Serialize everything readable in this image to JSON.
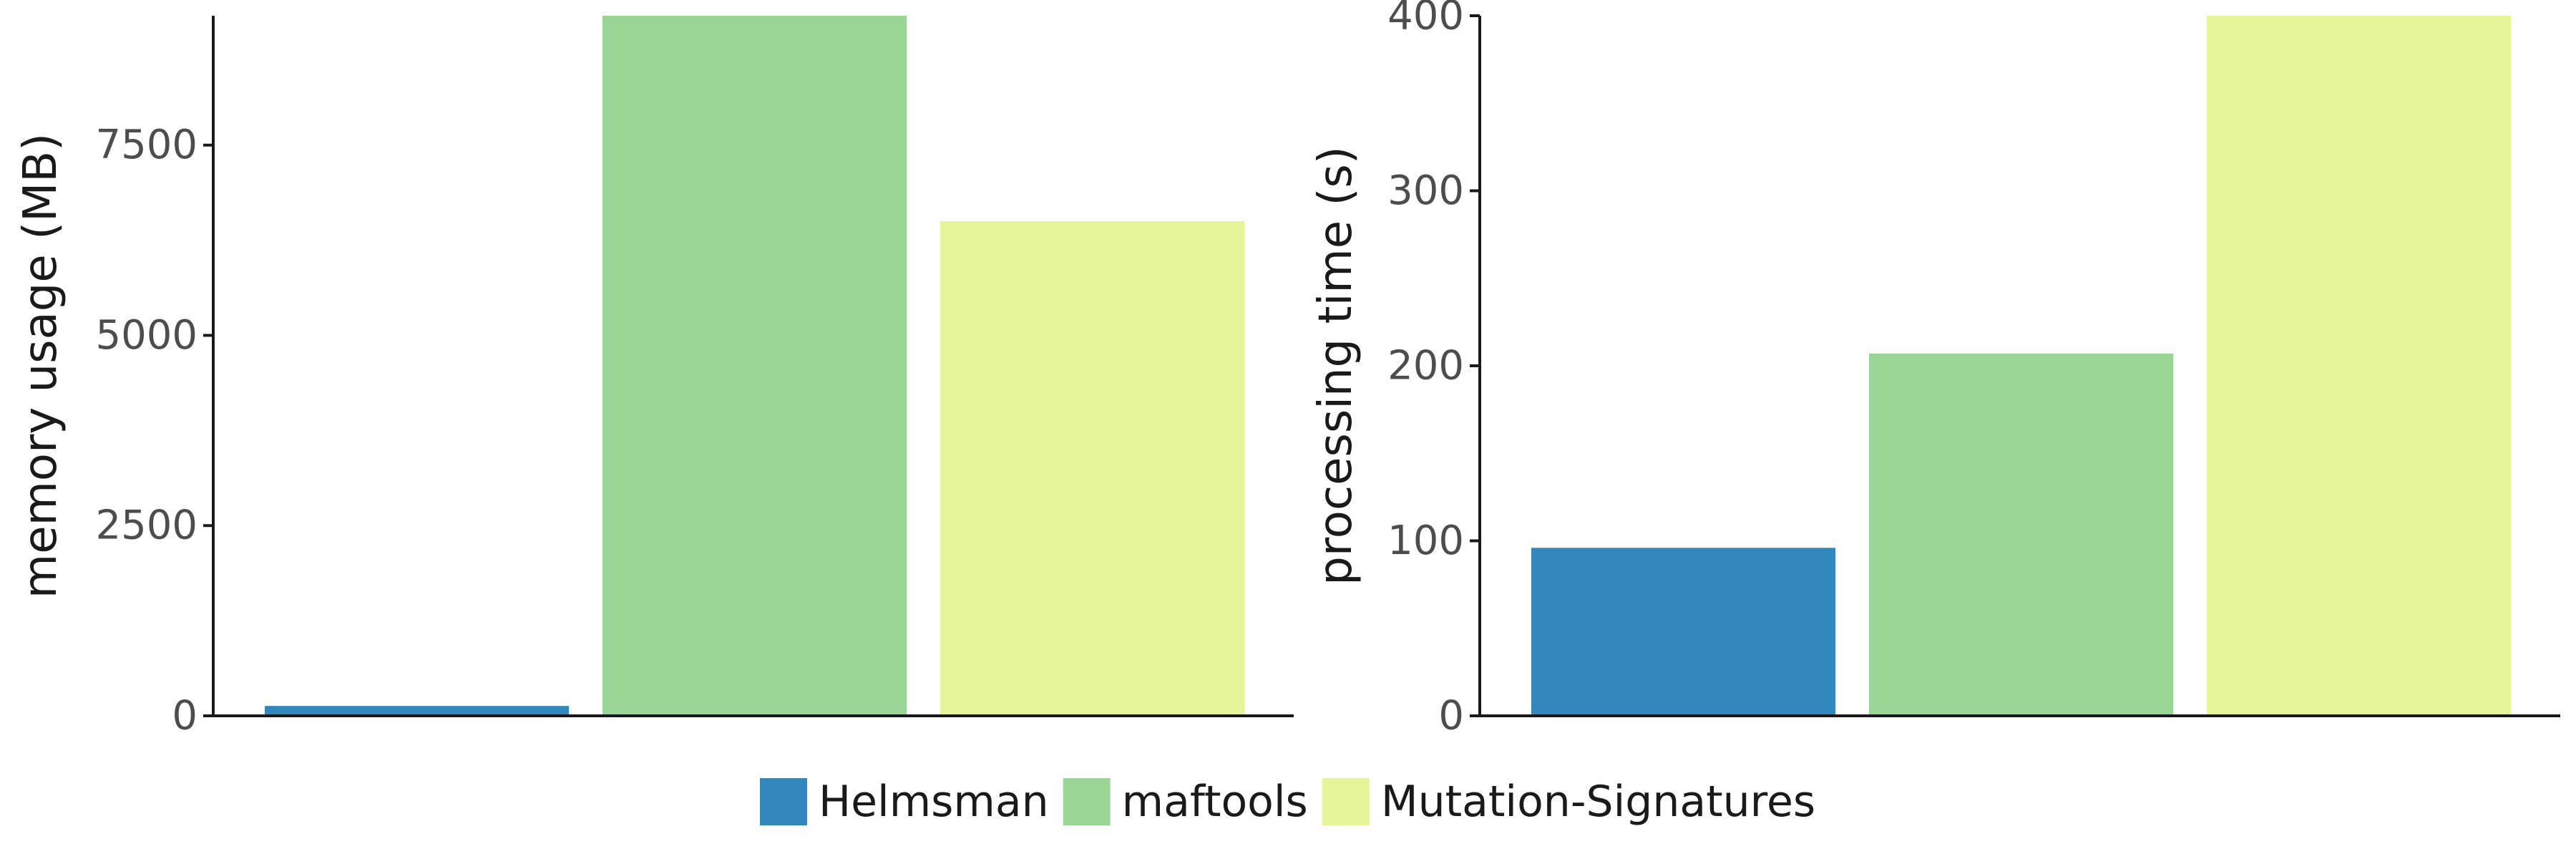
{
  "chart_data": [
    {
      "type": "bar",
      "categories": [
        "Helmsman",
        "maftools",
        "Mutation-Signatures"
      ],
      "values": [
        130,
        9200,
        6500
      ],
      "ylabel": "memory usage (MB)",
      "xlabel": "",
      "ylim": [
        0,
        9200
      ],
      "yticks": [
        0,
        2500,
        5000,
        7500
      ],
      "ytick_labels": [
        "0",
        "2500",
        "5000",
        "7500"
      ],
      "grid": false
    },
    {
      "type": "bar",
      "categories": [
        "Helmsman",
        "maftools",
        "Mutation-Signatures"
      ],
      "values": [
        96,
        207,
        402
      ],
      "ylabel": "processing time (s)",
      "xlabel": "",
      "ylim": [
        0,
        400
      ],
      "yticks": [
        0,
        100,
        200,
        300,
        400
      ],
      "ytick_labels": [
        "0",
        "100",
        "200",
        "300",
        "400"
      ],
      "grid": false
    }
  ],
  "legend": {
    "placement": "bottom",
    "items": [
      {
        "label": "Helmsman",
        "color": "#3288bd"
      },
      {
        "label": "maftools",
        "color": "#99d594"
      },
      {
        "label": "Mutation-Signatures",
        "color": "#e6f598"
      }
    ]
  }
}
